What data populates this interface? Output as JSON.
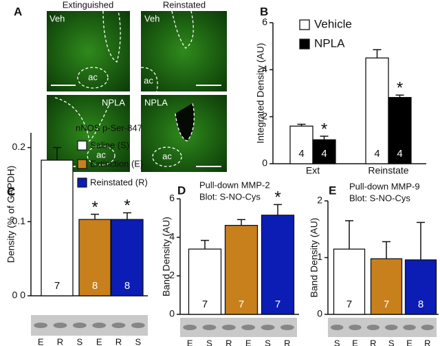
{
  "panel_a": {
    "label": "A",
    "columns": [
      "Extinguished",
      "Reinstated"
    ],
    "images": [
      {
        "label": "Veh",
        "region": "ac"
      },
      {
        "label": "Veh",
        "region": "ac"
      },
      {
        "label": "NPLA",
        "region": "ac"
      },
      {
        "label": "NPLA",
        "region": "ac"
      }
    ]
  },
  "chart_data": [
    {
      "type": "bar",
      "panel_label": "B",
      "y_label": "Integrated Density (AU)",
      "categories": [
        "Ext",
        "Reinstate"
      ],
      "series": [
        {
          "name": "Vehicle",
          "color": "#ffffff",
          "values": [
            1.6,
            4.5
          ],
          "errors": [
            0.08,
            0.35
          ],
          "n": [
            4,
            4
          ]
        },
        {
          "name": "NPLA",
          "color": "#000000",
          "values": [
            1.02,
            2.82
          ],
          "errors": [
            0.15,
            0.1
          ],
          "n": [
            4,
            4
          ],
          "significance": [
            "*",
            "*"
          ]
        }
      ],
      "ylim": [
        0,
        6
      ],
      "yticks": [
        0,
        2,
        4,
        6
      ],
      "legend": "top-left"
    },
    {
      "type": "bar",
      "panel_label": "C",
      "title": "nNOS p-Ser-847",
      "y_label": "Density (% of GAPDH)",
      "categories": [
        "Saline (S)",
        "Extinction (E)",
        "Reinstated (R)"
      ],
      "colors": [
        "#ffffff",
        "#c8801c",
        "#0b1db5"
      ],
      "values": [
        0.183,
        0.103,
        0.103
      ],
      "errors": [
        0.017,
        0.007,
        0.009
      ],
      "n": [
        7,
        8,
        8
      ],
      "significance": [
        null,
        "*",
        "*"
      ],
      "ylim": [
        0,
        0.22
      ],
      "yticks": [
        {
          "value": 0,
          "label": "0 0"
        },
        0.1,
        0.2
      ],
      "legend": "top-right",
      "lanes": [
        "E",
        "R",
        "S",
        "E",
        "R",
        "S"
      ]
    },
    {
      "type": "bar",
      "panel_label": "D",
      "title": "Pull-down MMP-2",
      "subtitle": "Blot: S-NO-Cys",
      "y_label": "Band Density (AU)",
      "categories": [
        null,
        null,
        null
      ],
      "colors": [
        "#ffffff",
        "#c8801c",
        "#0b1db5"
      ],
      "values": [
        3.39,
        4.62,
        5.15
      ],
      "errors": [
        0.45,
        0.3,
        0.55
      ],
      "n": [
        7,
        7,
        7
      ],
      "significance": [
        null,
        null,
        "*"
      ],
      "ylim": [
        0,
        6
      ],
      "yticks": [
        0,
        2,
        4,
        6
      ],
      "lanes": [
        "E",
        "S",
        "R",
        "E",
        "S",
        "R"
      ]
    },
    {
      "type": "bar",
      "panel_label": "E",
      "title": "Pull-down MMP-9",
      "subtitle": "Blot: S-NO-Cys",
      "y_label": "Band Density (AU)",
      "categories": [
        null,
        null,
        null
      ],
      "colors": [
        "#ffffff",
        "#c8801c",
        "#0b1db5"
      ],
      "values": [
        1.15,
        0.98,
        0.96
      ],
      "errors": [
        0.5,
        0.3,
        0.66
      ],
      "n": [
        7,
        7,
        8
      ],
      "significance": [
        null,
        null,
        null
      ],
      "ylim": [
        0,
        2
      ],
      "yticks": [
        0,
        1,
        2
      ],
      "lanes": [
        "S",
        "E",
        "R",
        "S",
        "E",
        "R"
      ]
    }
  ]
}
